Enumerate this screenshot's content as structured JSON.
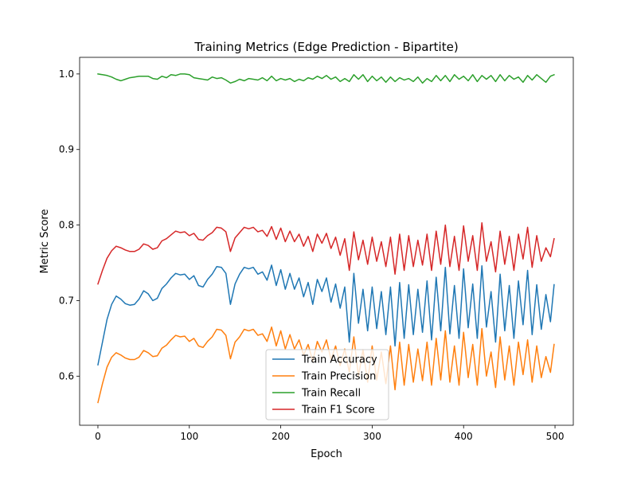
{
  "chart_data": {
    "type": "line",
    "title": "Training Metrics (Edge Prediction - Bipartite)",
    "xlabel": "Epoch",
    "ylabel": "Metric Score",
    "xlim": [
      -20,
      520
    ],
    "ylim": [
      0.535,
      1.022
    ],
    "x_ticks": [
      0,
      100,
      200,
      300,
      400,
      500
    ],
    "x_tick_labels": [
      "0",
      "100",
      "200",
      "300",
      "400",
      "500"
    ],
    "y_ticks": [
      0.6,
      0.7,
      0.8,
      0.9,
      1.0
    ],
    "y_tick_labels": [
      "0.6",
      "0.7",
      "0.8",
      "0.9",
      "1.0"
    ],
    "grid": false,
    "legend_position": "bottom-center",
    "series": [
      {
        "name": "Train Accuracy",
        "color": "#1f77b4",
        "x": [
          0,
          5,
          10,
          15,
          20,
          25,
          30,
          35,
          40,
          45,
          50,
          55,
          60,
          65,
          70,
          75,
          80,
          85,
          90,
          95,
          100,
          105,
          110,
          115,
          120,
          125,
          130,
          135,
          140,
          145,
          150,
          155,
          160,
          165,
          170,
          175,
          180,
          185,
          190,
          195,
          200,
          205,
          210,
          215,
          220,
          225,
          230,
          235,
          240,
          245,
          250,
          255,
          260,
          265,
          270,
          275,
          280,
          285,
          290,
          295,
          300,
          305,
          310,
          315,
          320,
          325,
          330,
          335,
          340,
          345,
          350,
          355,
          360,
          365,
          370,
          375,
          380,
          385,
          390,
          395,
          400,
          405,
          410,
          415,
          420,
          425,
          430,
          435,
          440,
          445,
          450,
          455,
          460,
          465,
          470,
          475,
          480,
          485,
          490,
          495,
          499
        ],
        "y": [
          0.615,
          0.645,
          0.675,
          0.695,
          0.706,
          0.702,
          0.696,
          0.694,
          0.695,
          0.702,
          0.713,
          0.709,
          0.7,
          0.703,
          0.716,
          0.722,
          0.73,
          0.736,
          0.734,
          0.735,
          0.728,
          0.733,
          0.72,
          0.718,
          0.728,
          0.735,
          0.745,
          0.744,
          0.736,
          0.695,
          0.722,
          0.735,
          0.744,
          0.742,
          0.744,
          0.735,
          0.738,
          0.727,
          0.747,
          0.72,
          0.741,
          0.715,
          0.736,
          0.715,
          0.73,
          0.705,
          0.724,
          0.695,
          0.728,
          0.712,
          0.73,
          0.698,
          0.722,
          0.69,
          0.718,
          0.645,
          0.736,
          0.67,
          0.715,
          0.66,
          0.718,
          0.663,
          0.712,
          0.655,
          0.718,
          0.64,
          0.724,
          0.65,
          0.721,
          0.655,
          0.715,
          0.658,
          0.726,
          0.648,
          0.731,
          0.66,
          0.744,
          0.656,
          0.72,
          0.65,
          0.742,
          0.664,
          0.722,
          0.65,
          0.746,
          0.665,
          0.712,
          0.645,
          0.735,
          0.66,
          0.72,
          0.65,
          0.726,
          0.668,
          0.74,
          0.655,
          0.721,
          0.662,
          0.708,
          0.672,
          0.721
        ]
      },
      {
        "name": "Train Precision",
        "color": "#ff7f0e",
        "x": [
          0,
          5,
          10,
          15,
          20,
          25,
          30,
          35,
          40,
          45,
          50,
          55,
          60,
          65,
          70,
          75,
          80,
          85,
          90,
          95,
          100,
          105,
          110,
          115,
          120,
          125,
          130,
          135,
          140,
          145,
          150,
          155,
          160,
          165,
          170,
          175,
          180,
          185,
          190,
          195,
          200,
          205,
          210,
          215,
          220,
          225,
          230,
          235,
          240,
          245,
          250,
          255,
          260,
          265,
          270,
          275,
          280,
          285,
          290,
          295,
          300,
          305,
          310,
          315,
          320,
          325,
          330,
          335,
          340,
          345,
          350,
          355,
          360,
          365,
          370,
          375,
          380,
          385,
          390,
          395,
          400,
          405,
          410,
          415,
          420,
          425,
          430,
          435,
          440,
          445,
          450,
          455,
          460,
          465,
          470,
          475,
          480,
          485,
          490,
          495,
          499
        ],
        "y": [
          0.565,
          0.59,
          0.612,
          0.625,
          0.631,
          0.628,
          0.624,
          0.622,
          0.622,
          0.625,
          0.634,
          0.631,
          0.626,
          0.627,
          0.637,
          0.641,
          0.648,
          0.654,
          0.652,
          0.653,
          0.646,
          0.65,
          0.64,
          0.638,
          0.646,
          0.652,
          0.662,
          0.661,
          0.654,
          0.623,
          0.645,
          0.652,
          0.662,
          0.66,
          0.662,
          0.654,
          0.656,
          0.646,
          0.665,
          0.64,
          0.66,
          0.636,
          0.655,
          0.636,
          0.648,
          0.628,
          0.642,
          0.62,
          0.646,
          0.632,
          0.648,
          0.622,
          0.64,
          0.614,
          0.636,
          0.605,
          0.652,
          0.6,
          0.635,
          0.592,
          0.64,
          0.595,
          0.632,
          0.59,
          0.64,
          0.582,
          0.645,
          0.588,
          0.642,
          0.592,
          0.636,
          0.594,
          0.645,
          0.588,
          0.65,
          0.595,
          0.66,
          0.592,
          0.64,
          0.588,
          0.658,
          0.598,
          0.642,
          0.588,
          0.663,
          0.6,
          0.632,
          0.585,
          0.652,
          0.595,
          0.64,
          0.588,
          0.645,
          0.602,
          0.648,
          0.592,
          0.64,
          0.598,
          0.626,
          0.605,
          0.642
        ]
      },
      {
        "name": "Train Recall",
        "color": "#2ca02c",
        "x": [
          0,
          5,
          10,
          15,
          20,
          25,
          30,
          35,
          40,
          45,
          50,
          55,
          60,
          65,
          70,
          75,
          80,
          85,
          90,
          95,
          100,
          105,
          110,
          115,
          120,
          125,
          130,
          135,
          140,
          145,
          150,
          155,
          160,
          165,
          170,
          175,
          180,
          185,
          190,
          195,
          200,
          205,
          210,
          215,
          220,
          225,
          230,
          235,
          240,
          245,
          250,
          255,
          260,
          265,
          270,
          275,
          280,
          285,
          290,
          295,
          300,
          305,
          310,
          315,
          320,
          325,
          330,
          335,
          340,
          345,
          350,
          355,
          360,
          365,
          370,
          375,
          380,
          385,
          390,
          395,
          400,
          405,
          410,
          415,
          420,
          425,
          430,
          435,
          440,
          445,
          450,
          455,
          460,
          465,
          470,
          475,
          480,
          485,
          490,
          495,
          499
        ],
        "y": [
          1.0,
          0.999,
          0.998,
          0.996,
          0.993,
          0.991,
          0.993,
          0.995,
          0.996,
          0.997,
          0.997,
          0.997,
          0.994,
          0.993,
          0.997,
          0.995,
          0.999,
          0.998,
          1.0,
          1.0,
          0.999,
          0.995,
          0.994,
          0.993,
          0.992,
          0.996,
          0.994,
          0.995,
          0.992,
          0.988,
          0.99,
          0.993,
          0.991,
          0.994,
          0.993,
          0.992,
          0.995,
          0.991,
          0.997,
          0.991,
          0.994,
          0.992,
          0.994,
          0.99,
          0.993,
          0.991,
          0.995,
          0.993,
          0.997,
          0.994,
          0.998,
          0.993,
          0.996,
          0.99,
          0.994,
          0.99,
          0.999,
          0.993,
          0.999,
          0.99,
          0.997,
          0.991,
          0.996,
          0.989,
          0.996,
          0.99,
          0.995,
          0.992,
          0.994,
          0.99,
          0.996,
          0.988,
          0.994,
          0.99,
          0.998,
          0.991,
          0.998,
          0.99,
          0.999,
          0.993,
          0.997,
          0.991,
          0.999,
          0.99,
          0.998,
          0.993,
          0.998,
          0.99,
          0.999,
          0.991,
          0.998,
          0.993,
          0.996,
          0.989,
          0.998,
          0.992,
          0.999,
          0.994,
          0.989,
          0.997,
          0.999
        ]
      },
      {
        "name": "Train F1 Score",
        "color": "#d62728",
        "x": [
          0,
          5,
          10,
          15,
          20,
          25,
          30,
          35,
          40,
          45,
          50,
          55,
          60,
          65,
          70,
          75,
          80,
          85,
          90,
          95,
          100,
          105,
          110,
          115,
          120,
          125,
          130,
          135,
          140,
          145,
          150,
          155,
          160,
          165,
          170,
          175,
          180,
          185,
          190,
          195,
          200,
          205,
          210,
          215,
          220,
          225,
          230,
          235,
          240,
          245,
          250,
          255,
          260,
          265,
          270,
          275,
          280,
          285,
          290,
          295,
          300,
          305,
          310,
          315,
          320,
          325,
          330,
          335,
          340,
          345,
          350,
          355,
          360,
          365,
          370,
          375,
          380,
          385,
          390,
          395,
          400,
          405,
          410,
          415,
          420,
          425,
          430,
          435,
          440,
          445,
          450,
          455,
          460,
          465,
          470,
          475,
          480,
          485,
          490,
          495,
          499
        ],
        "y": [
          0.722,
          0.74,
          0.756,
          0.766,
          0.772,
          0.77,
          0.767,
          0.765,
          0.765,
          0.768,
          0.775,
          0.773,
          0.768,
          0.77,
          0.779,
          0.782,
          0.787,
          0.792,
          0.79,
          0.791,
          0.786,
          0.789,
          0.781,
          0.78,
          0.786,
          0.79,
          0.797,
          0.796,
          0.791,
          0.765,
          0.783,
          0.79,
          0.797,
          0.795,
          0.797,
          0.791,
          0.793,
          0.785,
          0.798,
          0.781,
          0.796,
          0.778,
          0.792,
          0.778,
          0.788,
          0.772,
          0.785,
          0.765,
          0.788,
          0.776,
          0.789,
          0.769,
          0.784,
          0.76,
          0.782,
          0.74,
          0.791,
          0.754,
          0.78,
          0.748,
          0.784,
          0.752,
          0.778,
          0.745,
          0.784,
          0.735,
          0.788,
          0.74,
          0.786,
          0.745,
          0.78,
          0.747,
          0.788,
          0.74,
          0.792,
          0.748,
          0.8,
          0.745,
          0.785,
          0.74,
          0.799,
          0.752,
          0.786,
          0.74,
          0.803,
          0.752,
          0.778,
          0.738,
          0.792,
          0.748,
          0.785,
          0.74,
          0.788,
          0.755,
          0.797,
          0.744,
          0.786,
          0.752,
          0.77,
          0.758,
          0.782
        ]
      }
    ]
  }
}
